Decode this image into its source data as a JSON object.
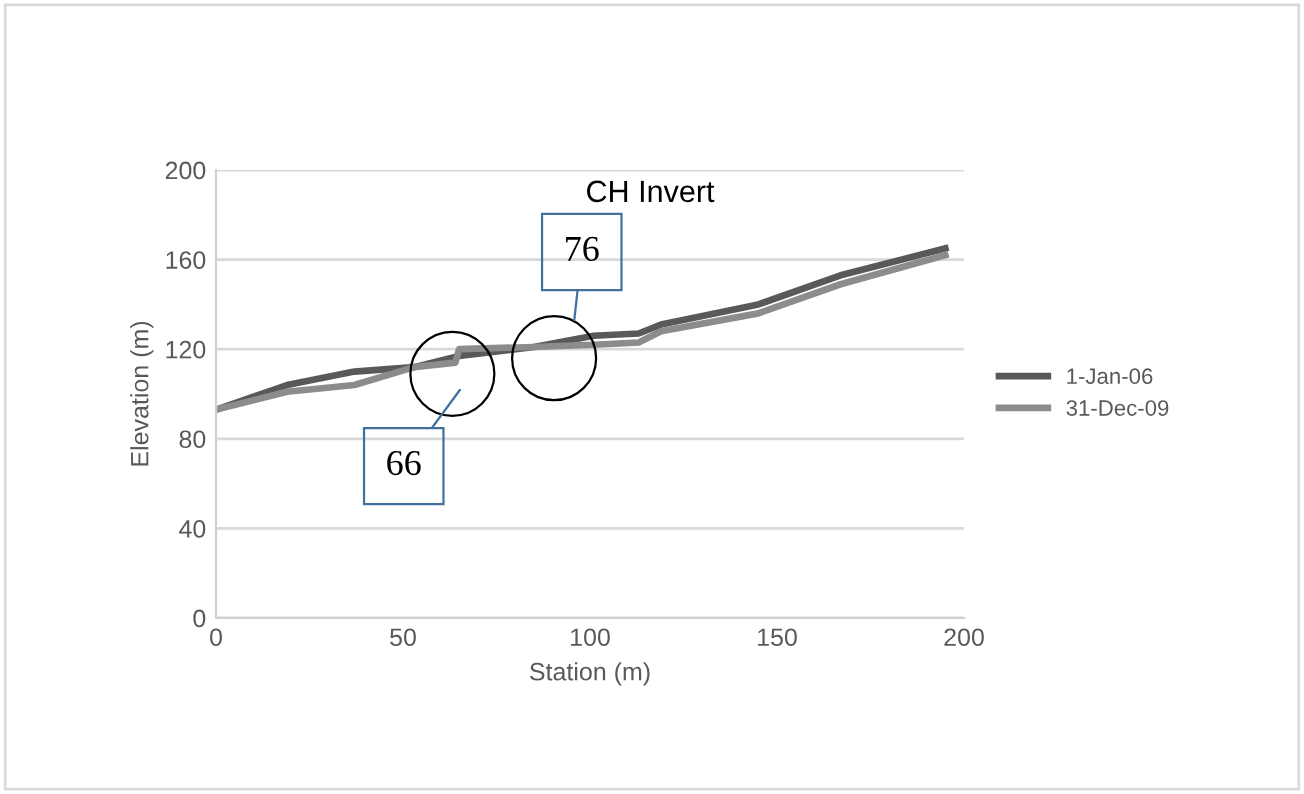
{
  "chart_data": {
    "type": "line",
    "title": "CH Invert",
    "xlabel": "Station (m)",
    "ylabel": "Elevation (m)",
    "series": [
      {
        "name": "1-Jan-06",
        "color": "#595959",
        "x": [
          0,
          19,
          37,
          53,
          65,
          85,
          101,
          113,
          119,
          145,
          167,
          195
        ],
        "values": [
          93,
          104,
          110,
          112,
          117,
          121,
          126,
          127,
          131,
          140,
          153,
          165
        ]
      },
      {
        "name": "31-Dec-09",
        "color": "#8c8c8c",
        "x": [
          0,
          19,
          37,
          53,
          64,
          65,
          85,
          101,
          113,
          119,
          145,
          167,
          195
        ],
        "values": [
          93,
          101,
          104,
          112,
          114,
          120,
          121,
          122,
          123,
          128,
          136,
          149,
          162
        ]
      }
    ],
    "annotations": [
      "66",
      "76"
    ],
    "xlim": [
      0,
      200
    ],
    "ylim": [
      0,
      200
    ],
    "xticks": [
      0,
      50,
      100,
      150,
      200
    ],
    "yticks": [
      0,
      40,
      80,
      120,
      160,
      200
    ],
    "grid": "y",
    "legend": "right",
    "line_style": "solid",
    "marker": "none"
  }
}
